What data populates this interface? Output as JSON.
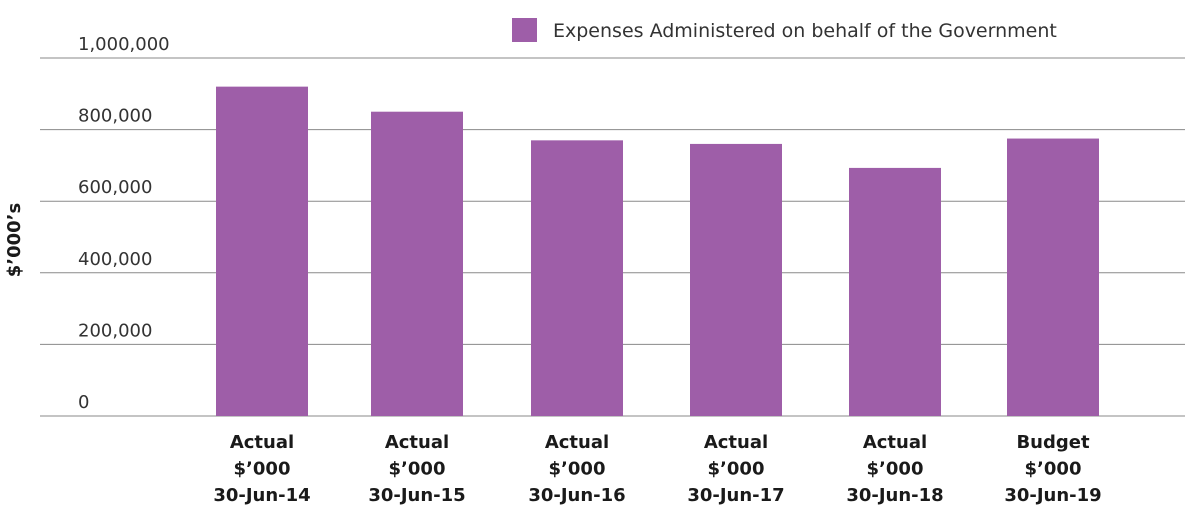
{
  "chart_data": {
    "type": "bar",
    "title": "",
    "xlabel": "",
    "ylabel": "$’000’s",
    "ylim": [
      0,
      1000000
    ],
    "yticks": [
      {
        "value": 0,
        "label": "0"
      },
      {
        "value": 200000,
        "label": "200,000"
      },
      {
        "value": 400000,
        "label": "400,000"
      },
      {
        "value": 600000,
        "label": "600,000"
      },
      {
        "value": 800000,
        "label": "800,000"
      },
      {
        "value": 1000000,
        "label": "1,000,000"
      }
    ],
    "categories": [
      [
        "Actual",
        "$’000",
        "30-Jun-14"
      ],
      [
        "Actual",
        "$’000",
        "30-Jun-15"
      ],
      [
        "Actual",
        "$’000",
        "30-Jun-16"
      ],
      [
        "Actual",
        "$’000",
        "30-Jun-17"
      ],
      [
        "Actual",
        "$’000",
        "30-Jun-18"
      ],
      [
        "Budget",
        "$’000",
        "30-Jun-19"
      ]
    ],
    "series": [
      {
        "name": "Expenses Administered on behalf of the Government",
        "color": "#9e5ea8",
        "values": [
          920000,
          850000,
          770000,
          760000,
          693000,
          775000
        ]
      }
    ],
    "legend_position": "top-right",
    "grid": true
  }
}
